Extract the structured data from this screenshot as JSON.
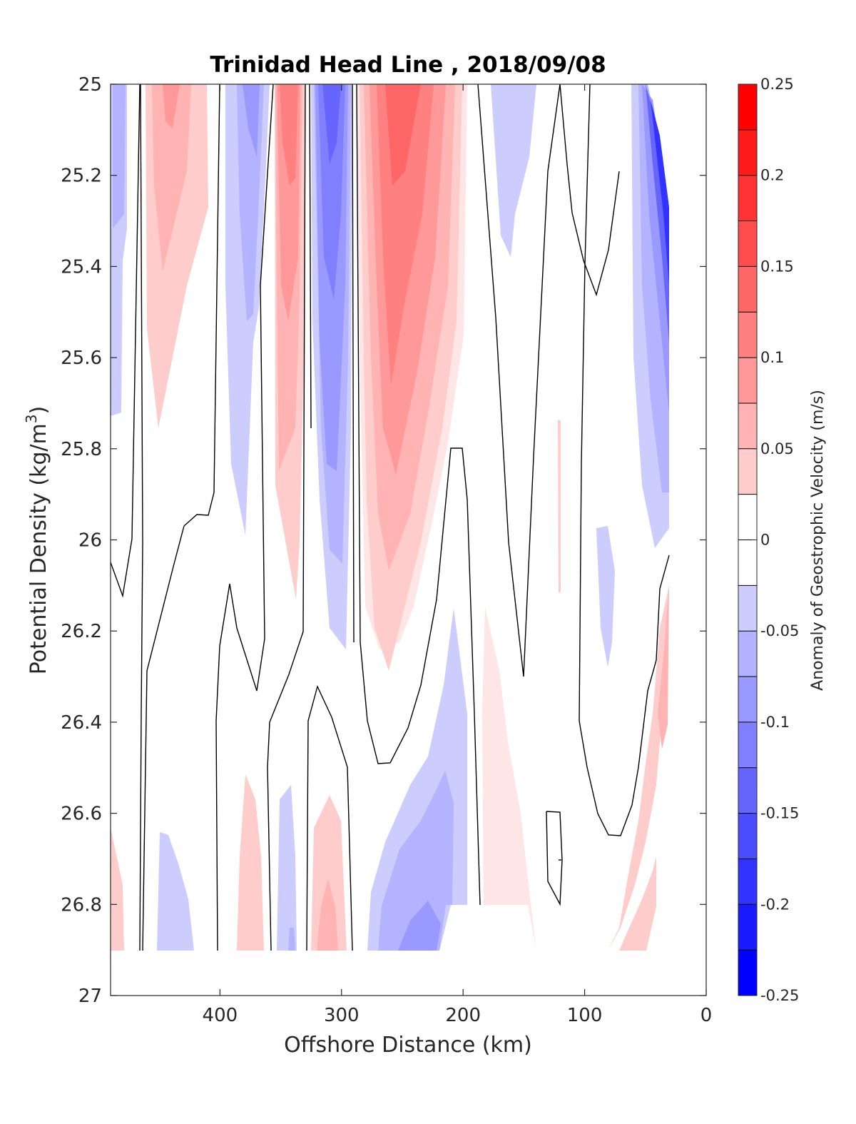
{
  "chart_data": {
    "type": "heatmap",
    "title": "Trinidad Head Line , 2018/09/08",
    "xlabel": "Offshore Distance (km)",
    "ylabel_main": "Potential Density (kg/m",
    "ylabel_sup": "3",
    "ylabel_close": ")",
    "colorbar_label": "Anomaly of Geostrophic Velocity (m/s)",
    "xlim": [
      490,
      0
    ],
    "ylim": [
      25,
      27
    ],
    "y_reversed": true,
    "xticks": [
      400,
      300,
      200,
      100,
      0
    ],
    "yticks": [
      25,
      25.2,
      25.4,
      25.6,
      25.8,
      26,
      26.2,
      26.4,
      26.6,
      26.8,
      27
    ],
    "colorbar": {
      "range": [
        -0.25,
        0.25
      ],
      "levels": 20,
      "ticks": [
        "0.25",
        "0.2",
        "0.15",
        "0.1",
        "0.05",
        "0",
        "-0.05",
        "-0.1",
        "-0.15",
        "-0.2",
        "-0.25"
      ]
    },
    "colors": {
      "positive": "#ff0000",
      "negative": "#0000ff",
      "neutral": "#ffffff",
      "zero_contour": "#000000"
    },
    "anomaly_features": [
      {
        "x": 480,
        "y": 25.3,
        "value": -0.05
      },
      {
        "x": 440,
        "y": 25.2,
        "value": 0.06
      },
      {
        "x": 375,
        "y": 25.3,
        "value": -0.07
      },
      {
        "x": 345,
        "y": 25.3,
        "value": 0.12
      },
      {
        "x": 310,
        "y": 25.3,
        "value": -0.15
      },
      {
        "x": 250,
        "y": 25.3,
        "value": 0.15
      },
      {
        "x": 160,
        "y": 25.2,
        "value": -0.03
      },
      {
        "x": 45,
        "y": 25.3,
        "value": -0.17
      },
      {
        "x": 90,
        "y": 26.1,
        "value": -0.03
      },
      {
        "x": 200,
        "y": 26.6,
        "value": -0.07
      },
      {
        "x": 300,
        "y": 26.8,
        "value": 0.07
      },
      {
        "x": 150,
        "y": 26.6,
        "value": 0.03
      },
      {
        "x": 35,
        "y": 26.3,
        "value": 0.08
      }
    ]
  }
}
